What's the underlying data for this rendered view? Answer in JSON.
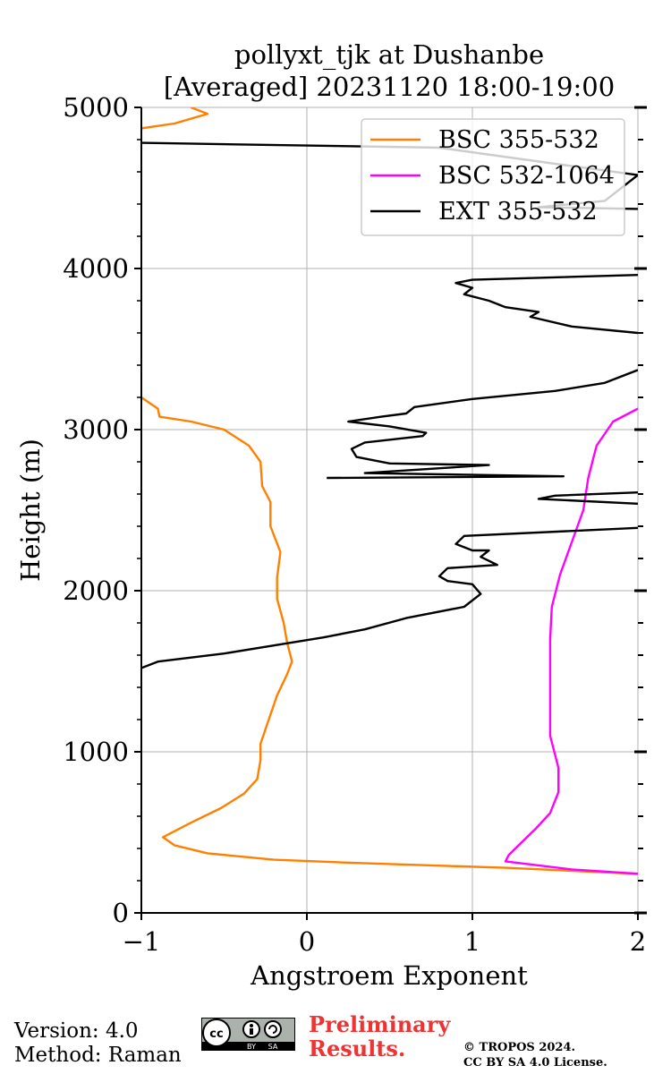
{
  "chart_data": {
    "type": "line",
    "title_line1": "pollyxt_tjk at Dushanbe",
    "title_line2": "[Averaged] 20231120 18:00-19:00",
    "xlabel": "Angstroem Exponent",
    "ylabel": "Height (m)",
    "xlim": [
      -1,
      2
    ],
    "ylim": [
      0,
      5000
    ],
    "xticks": [
      -1,
      0,
      1,
      2
    ],
    "xtick_labels": [
      "−1",
      "0",
      "1",
      "2"
    ],
    "yticks": [
      0,
      1000,
      2000,
      3000,
      4000,
      5000
    ],
    "ytick_labels": [
      "0",
      "1000",
      "2000",
      "3000",
      "4000",
      "5000"
    ],
    "grid": true,
    "legend_position": "top-right",
    "series": [
      {
        "name": "BSC 355-532",
        "color": "#ff8000",
        "points": [
          [
            2.05,
            240
          ],
          [
            1.2,
            280
          ],
          [
            0.3,
            310
          ],
          [
            -0.2,
            330
          ],
          [
            -0.6,
            370
          ],
          [
            -0.8,
            420
          ],
          [
            -0.87,
            470
          ],
          [
            -0.7,
            560
          ],
          [
            -0.52,
            650
          ],
          [
            -0.38,
            740
          ],
          [
            -0.3,
            830
          ],
          [
            -0.28,
            950
          ],
          [
            -0.28,
            1050
          ],
          [
            -0.23,
            1200
          ],
          [
            -0.18,
            1350
          ],
          [
            -0.12,
            1480
          ],
          [
            -0.09,
            1560
          ],
          [
            -0.12,
            1680
          ],
          [
            -0.14,
            1800
          ],
          [
            -0.18,
            1950
          ],
          [
            -0.18,
            2080
          ],
          [
            -0.16,
            2240
          ],
          [
            -0.22,
            2400
          ],
          [
            -0.22,
            2550
          ],
          [
            -0.27,
            2650
          ],
          [
            -0.28,
            2800
          ],
          [
            -0.35,
            2900
          ],
          [
            -0.5,
            3000
          ],
          [
            -0.7,
            3050
          ],
          [
            -0.89,
            3080
          ],
          [
            -0.9,
            3130
          ],
          [
            -1.0,
            3200
          ]
        ]
      },
      {
        "name": "BSC 355-532",
        "color": "#ff8000",
        "points": [
          [
            -1.0,
            4870
          ],
          [
            -0.8,
            4900
          ],
          [
            -0.6,
            4960
          ],
          [
            -0.7,
            5000
          ]
        ]
      },
      {
        "name": "BSC 532-1064",
        "color": "#ff00ff",
        "points": [
          [
            2.05,
            240
          ],
          [
            1.6,
            270
          ],
          [
            1.2,
            320
          ],
          [
            1.22,
            360
          ],
          [
            1.28,
            420
          ],
          [
            1.38,
            520
          ],
          [
            1.47,
            620
          ],
          [
            1.52,
            750
          ],
          [
            1.52,
            900
          ],
          [
            1.47,
            1100
          ],
          [
            1.47,
            1300
          ],
          [
            1.47,
            1500
          ],
          [
            1.47,
            1700
          ],
          [
            1.48,
            1900
          ],
          [
            1.53,
            2100
          ],
          [
            1.6,
            2300
          ],
          [
            1.67,
            2500
          ],
          [
            1.7,
            2700
          ],
          [
            1.75,
            2900
          ],
          [
            1.85,
            3050
          ],
          [
            2.0,
            3130
          ]
        ]
      },
      {
        "name": "EXT 355-532",
        "color": "#000000",
        "points": [
          [
            -1.0,
            1520
          ],
          [
            -0.9,
            1560
          ],
          [
            -0.5,
            1610
          ],
          [
            -0.2,
            1660
          ],
          [
            0.1,
            1710
          ],
          [
            0.35,
            1760
          ],
          [
            0.6,
            1830
          ],
          [
            0.95,
            1900
          ],
          [
            1.05,
            1980
          ],
          [
            1.0,
            2040
          ],
          [
            0.85,
            2060
          ],
          [
            0.8,
            2090
          ],
          [
            0.85,
            2140
          ],
          [
            1.15,
            2160
          ],
          [
            1.05,
            2210
          ],
          [
            1.1,
            2250
          ],
          [
            1.0,
            2250
          ],
          [
            0.9,
            2290
          ],
          [
            0.95,
            2340
          ],
          [
            2.0,
            2390
          ]
        ]
      },
      {
        "name": "EXT 355-532",
        "color": "#000000",
        "points": [
          [
            2.0,
            2540
          ],
          [
            1.4,
            2570
          ],
          [
            1.5,
            2590
          ],
          [
            2.0,
            2610
          ]
        ]
      },
      {
        "name": "EXT 355-532",
        "color": "#000000",
        "points": [
          [
            0.12,
            2700
          ],
          [
            1.55,
            2710
          ],
          [
            0.35,
            2730
          ],
          [
            1.1,
            2780
          ],
          [
            0.5,
            2790
          ],
          [
            0.3,
            2830
          ],
          [
            0.27,
            2880
          ],
          [
            0.35,
            2920
          ],
          [
            0.7,
            2960
          ],
          [
            0.72,
            2980
          ],
          [
            0.5,
            3020
          ],
          [
            0.25,
            3050
          ],
          [
            0.45,
            3080
          ],
          [
            0.6,
            3100
          ],
          [
            0.65,
            3140
          ],
          [
            1.0,
            3190
          ],
          [
            1.5,
            3240
          ],
          [
            1.8,
            3290
          ],
          [
            2.0,
            3370
          ]
        ]
      },
      {
        "name": "EXT 355-532",
        "color": "#000000",
        "points": [
          [
            2.0,
            3600
          ],
          [
            1.6,
            3640
          ],
          [
            1.35,
            3700
          ],
          [
            1.4,
            3730
          ],
          [
            1.2,
            3760
          ],
          [
            1.1,
            3800
          ],
          [
            0.95,
            3840
          ],
          [
            1.0,
            3880
          ],
          [
            0.9,
            3910
          ],
          [
            1.0,
            3930
          ],
          [
            2.0,
            3960
          ]
        ]
      },
      {
        "name": "EXT 355-532",
        "color": "#000000",
        "points": [
          [
            2.0,
            4370
          ],
          [
            1.4,
            4380
          ],
          [
            1.8,
            4420
          ],
          [
            2.0,
            4580
          ],
          [
            1.5,
            4650
          ],
          [
            0.8,
            4750
          ],
          [
            -0.4,
            4770
          ],
          [
            -1.0,
            4780
          ]
        ]
      }
    ],
    "legend": [
      {
        "label": "BSC 355-532",
        "color": "#ff8000"
      },
      {
        "label": "BSC 532-1064",
        "color": "#ff00ff"
      },
      {
        "label": "EXT 355-532",
        "color": "#000000"
      }
    ]
  },
  "footer": {
    "version": "Version: 4.0",
    "method": "Method: Raman",
    "preliminary_line1": "Preliminary",
    "preliminary_line2": "Results.",
    "preliminary_color": "#ee3333",
    "copyright_line1": "© TROPOS 2024.",
    "copyright_line2": "CC BY SA 4.0 License.",
    "cc_badge_text": "cc",
    "cc_by": "BY",
    "cc_sa": "SA"
  }
}
